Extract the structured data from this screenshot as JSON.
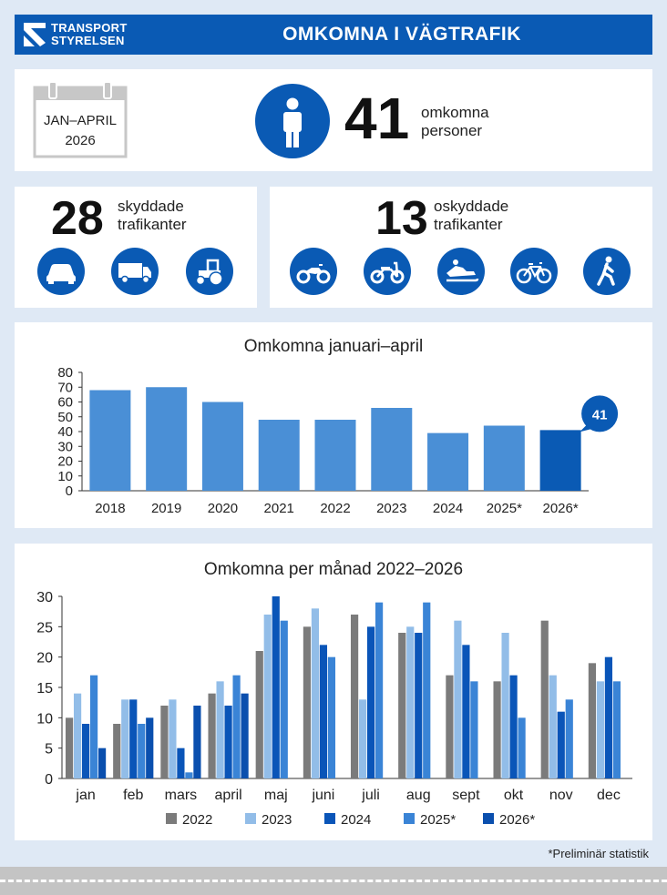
{
  "header": {
    "logo_line1": "TRANSPORT",
    "logo_line2": "STYRELSEN",
    "title": "OMKOMNA I VÄGTRAFIK"
  },
  "summary": {
    "period_line1": "JAN–APRIL",
    "period_line2": "2026",
    "total": "41",
    "total_label_line1": "omkomna",
    "total_label_line2": "personer",
    "icon": "person-icon"
  },
  "protected": {
    "count": "28",
    "label_line1": "skyddade",
    "label_line2": "trafikanter",
    "icons": [
      "car-icon",
      "truck-icon",
      "tractor-icon"
    ]
  },
  "unprotected": {
    "count": "13",
    "label_line1": "oskyddade",
    "label_line2": "trafikanter",
    "icons": [
      "motorcycle-icon",
      "moped-icon",
      "snowmobile-icon",
      "bicycle-icon",
      "pedestrian-icon"
    ]
  },
  "colors": {
    "brand": "#0a5ab4",
    "bar": "#4a8fd6",
    "bar_highlight": "#0a5ab4",
    "s2022": "#7b7b7b",
    "s2023": "#92bde8",
    "s2024": "#0a55b8",
    "s2025": "#3a84d6",
    "s2026": "#0a4fae"
  },
  "chart_data": [
    {
      "type": "bar",
      "title": "Omkomna januari–april",
      "categories": [
        "2018",
        "2019",
        "2020",
        "2021",
        "2022",
        "2023",
        "2024",
        "2025*",
        "2026*"
      ],
      "values": [
        68,
        70,
        60,
        48,
        48,
        56,
        39,
        44,
        41
      ],
      "ylim": [
        0,
        80
      ],
      "yticks": [
        0,
        10,
        20,
        30,
        40,
        50,
        60,
        70,
        80
      ],
      "callout": "41",
      "grid": false
    },
    {
      "type": "bar",
      "title": "Omkomna per månad 2022–2026",
      "categories": [
        "jan",
        "feb",
        "mars",
        "april",
        "maj",
        "juni",
        "juli",
        "aug",
        "sept",
        "okt",
        "nov",
        "dec"
      ],
      "series": [
        {
          "name": "2022",
          "values": [
            10,
            9,
            12,
            14,
            21,
            25,
            27,
            24,
            17,
            16,
            26,
            19
          ]
        },
        {
          "name": "2023",
          "values": [
            14,
            13,
            13,
            16,
            27,
            28,
            13,
            25,
            26,
            24,
            17,
            16
          ]
        },
        {
          "name": "2024",
          "values": [
            9,
            13,
            5,
            12,
            30,
            22,
            25,
            24,
            22,
            17,
            11,
            20
          ]
        },
        {
          "name": "2025*",
          "values": [
            17,
            9,
            1,
            17,
            26,
            20,
            29,
            29,
            16,
            10,
            13,
            16
          ]
        },
        {
          "name": "2026*",
          "values": [
            5,
            10,
            12,
            14,
            null,
            null,
            null,
            null,
            null,
            null,
            null,
            null
          ]
        }
      ],
      "ylim": [
        0,
        30
      ],
      "yticks": [
        0,
        5,
        10,
        15,
        20,
        25,
        30
      ],
      "legend": "bottom",
      "grid": false
    }
  ],
  "footnote": "*Preliminär statistik"
}
